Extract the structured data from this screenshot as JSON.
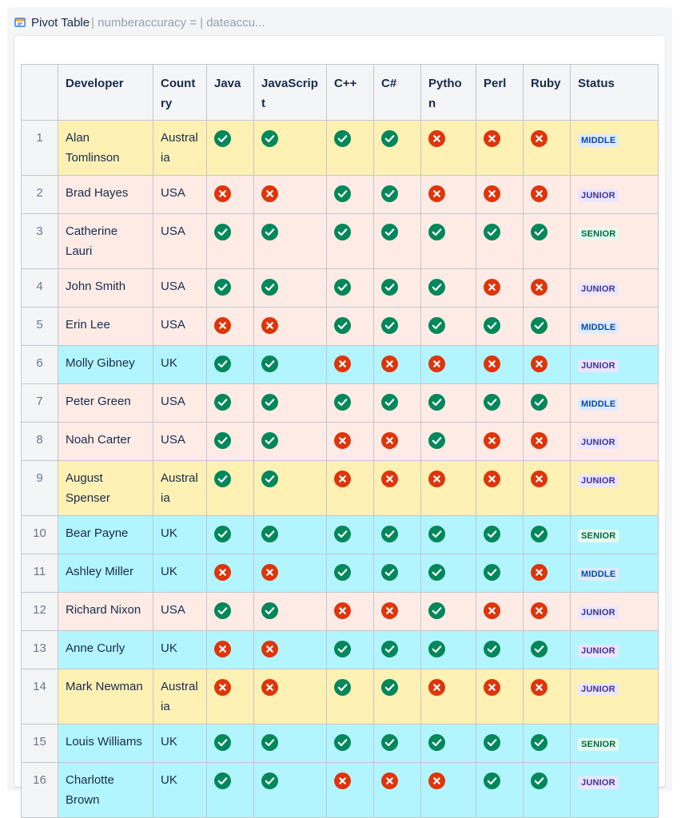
{
  "header": {
    "title": "Pivot Table",
    "params": "| numberaccuracy = | dateaccu...",
    "icon": "pivot-table-icon"
  },
  "table": {
    "columns": [
      "",
      "Developer",
      "Country",
      "Java",
      "JavaScript",
      "C++",
      "C#",
      "Python",
      "Perl",
      "Ruby",
      "Status"
    ],
    "languages": [
      "Java",
      "JavaScript",
      "C++",
      "C#",
      "Python",
      "Perl",
      "Ruby"
    ],
    "colors": {
      "yellow": "#fff0b3",
      "pink": "#ffebe6",
      "cyan": "#b3f5ff",
      "yes": "#00875a",
      "no": "#de350b"
    },
    "rows": [
      {
        "n": "1",
        "dev": "Alan Tomlinson",
        "country": "Australia",
        "bg": "yellow",
        "skills": [
          1,
          1,
          1,
          1,
          0,
          0,
          0
        ],
        "status": "MIDDLE"
      },
      {
        "n": "2",
        "dev": "Brad Hayes",
        "country": "USA",
        "bg": "pink",
        "skills": [
          0,
          0,
          1,
          1,
          0,
          0,
          0
        ],
        "status": "JUNIOR"
      },
      {
        "n": "3",
        "dev": "Catherine Lauri",
        "country": "USA",
        "bg": "pink",
        "skills": [
          1,
          1,
          1,
          1,
          1,
          1,
          1
        ],
        "status": "SENIOR"
      },
      {
        "n": "4",
        "dev": "John Smith",
        "country": "USA",
        "bg": "pink",
        "skills": [
          1,
          1,
          1,
          1,
          1,
          0,
          0
        ],
        "status": "JUNIOR"
      },
      {
        "n": "5",
        "dev": "Erin Lee",
        "country": "USA",
        "bg": "pink",
        "skills": [
          0,
          0,
          1,
          1,
          1,
          1,
          1
        ],
        "status": "MIDDLE"
      },
      {
        "n": "6",
        "dev": "Molly Gibney",
        "country": "UK",
        "bg": "cyan",
        "skills": [
          1,
          1,
          0,
          0,
          0,
          0,
          0
        ],
        "status": "JUNIOR"
      },
      {
        "n": "7",
        "dev": "Peter Green",
        "country": "USA",
        "bg": "pink",
        "skills": [
          1,
          1,
          1,
          1,
          1,
          1,
          1
        ],
        "status": "MIDDLE"
      },
      {
        "n": "8",
        "dev": "Noah Carter",
        "country": "USA",
        "bg": "pink",
        "skills": [
          1,
          1,
          0,
          0,
          1,
          0,
          0
        ],
        "status": "JUNIOR"
      },
      {
        "n": "9",
        "dev": "August Spenser",
        "country": "Australia",
        "bg": "yellow",
        "skills": [
          1,
          1,
          0,
          0,
          0,
          0,
          0
        ],
        "status": "JUNIOR"
      },
      {
        "n": "10",
        "dev": "Bear Payne",
        "country": "UK",
        "bg": "cyan",
        "skills": [
          1,
          1,
          1,
          1,
          1,
          1,
          1
        ],
        "status": "SENIOR"
      },
      {
        "n": "11",
        "dev": "Ashley Miller",
        "country": "UK",
        "bg": "cyan",
        "skills": [
          0,
          0,
          1,
          1,
          1,
          1,
          0
        ],
        "status": "MIDDLE"
      },
      {
        "n": "12",
        "dev": "Richard Nixon",
        "country": "USA",
        "bg": "pink",
        "skills": [
          1,
          1,
          0,
          0,
          1,
          0,
          0
        ],
        "status": "JUNIOR"
      },
      {
        "n": "13",
        "dev": "Anne Curly",
        "country": "UK",
        "bg": "cyan",
        "skills": [
          0,
          0,
          1,
          1,
          1,
          1,
          1
        ],
        "status": "JUNIOR"
      },
      {
        "n": "14",
        "dev": "Mark Newman",
        "country": "Australia",
        "bg": "yellow",
        "skills": [
          0,
          0,
          1,
          1,
          0,
          0,
          0
        ],
        "status": "JUNIOR"
      },
      {
        "n": "15",
        "dev": "Louis Williams",
        "country": "UK",
        "bg": "cyan",
        "skills": [
          1,
          1,
          1,
          1,
          1,
          1,
          1
        ],
        "status": "SENIOR"
      },
      {
        "n": "16",
        "dev": "Charlotte Brown",
        "country": "UK",
        "bg": "cyan",
        "skills": [
          1,
          1,
          0,
          0,
          0,
          1,
          1
        ],
        "status": "JUNIOR"
      }
    ]
  }
}
